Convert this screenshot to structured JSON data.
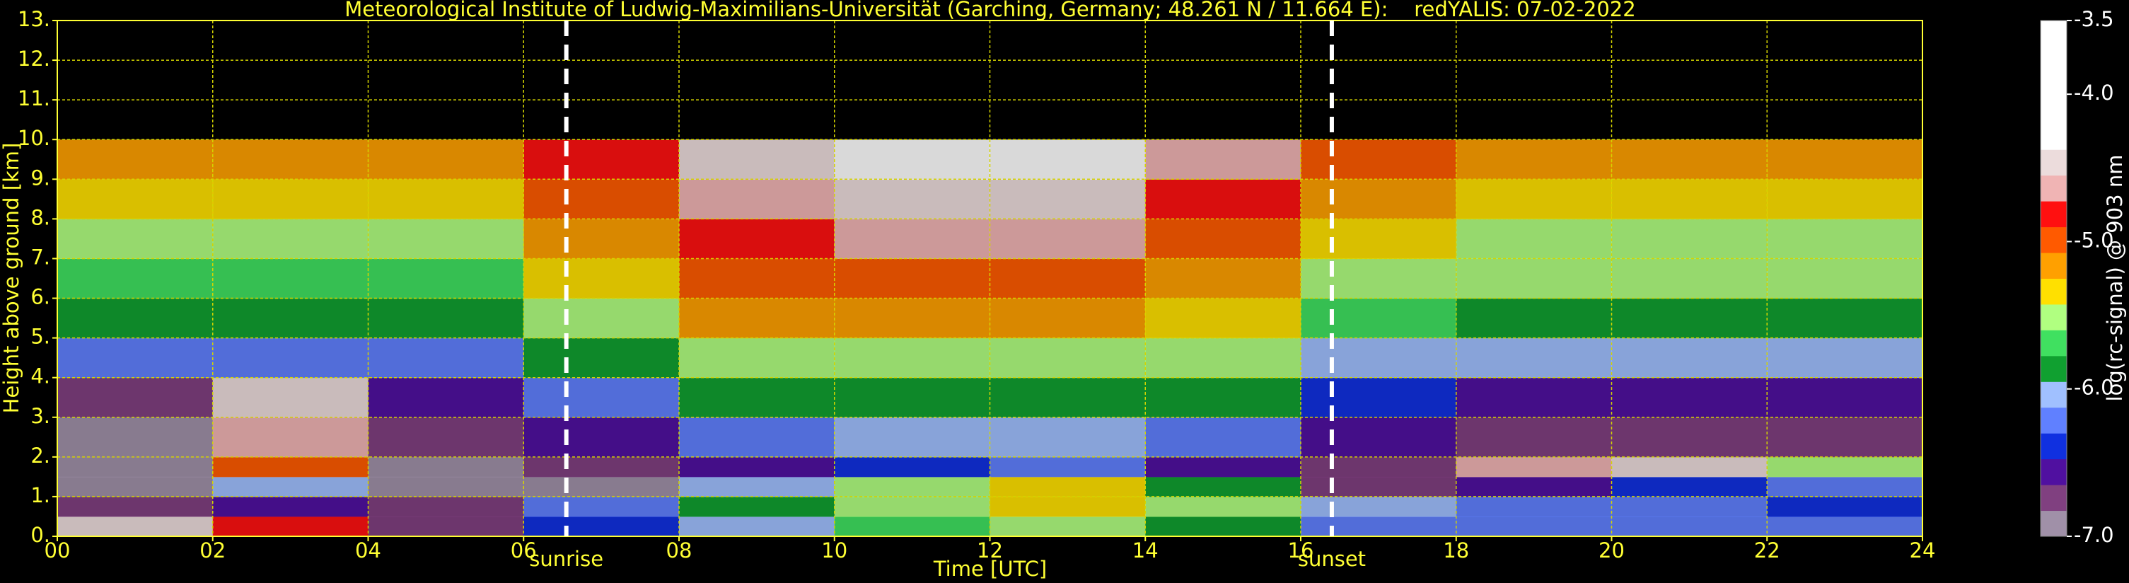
{
  "chart_data": {
    "type": "heatmap",
    "title": "Meteorological Institute of Ludwig-Maximilians-Universität (Garching, Germany; 48.261 N / 11.664 E):    redYALIS: 07-02-2022",
    "x_label": "Time [UTC]",
    "y_label": "Height above ground [km]",
    "colorbar_label": "log(rc-signal) @ 903 nm",
    "xlim": [
      0,
      24
    ],
    "ylim": [
      0,
      13
    ],
    "xticks": [
      {
        "value": 0,
        "label": "00"
      },
      {
        "value": 2,
        "label": "02"
      },
      {
        "value": 4,
        "label": "04"
      },
      {
        "value": 6,
        "label": "06"
      },
      {
        "value": 8,
        "label": "08"
      },
      10,
      12,
      14,
      16,
      18,
      20,
      22,
      24
    ],
    "yticks": [
      {
        "value": 0,
        "label": "0."
      },
      {
        "value": 1,
        "label": "1."
      },
      {
        "value": 2,
        "label": "2."
      },
      {
        "value": 3,
        "label": "3."
      },
      {
        "value": 4,
        "label": "4."
      },
      {
        "value": 5,
        "label": "5."
      },
      {
        "value": 6,
        "label": "6."
      },
      {
        "value": 7,
        "label": "7."
      },
      {
        "value": 8,
        "label": "8."
      },
      {
        "value": 9,
        "label": "9."
      },
      {
        "value": 10,
        "label": "10."
      },
      {
        "value": 11,
        "label": "11."
      },
      {
        "value": 12,
        "label": "12."
      },
      {
        "value": 13,
        "label": "13."
      }
    ],
    "grid": true,
    "grid_color": "#d4d400",
    "x_edges": [
      0,
      2,
      4,
      6,
      8,
      10,
      12,
      14,
      16,
      18,
      20,
      22,
      24
    ],
    "y_edges": [
      0,
      0.5,
      1,
      1.5,
      2,
      3,
      4,
      5,
      6,
      7,
      8,
      9,
      10
    ],
    "z": [
      [
        -4.5,
        -4.8,
        -6.7,
        -6.4,
        -6.1,
        -5.7,
        -5.6,
        -5.9,
        -6.3,
        -6.2,
        -6.3,
        -6.3
      ],
      [
        -6.8,
        -6.6,
        -6.7,
        -6.2,
        -5.8,
        -5.5,
        -5.3,
        -5.6,
        -6.0,
        -6.3,
        -6.3,
        -6.4
      ],
      [
        -7.0,
        -6.0,
        -6.9,
        -6.9,
        -6.0,
        -5.6,
        -5.4,
        -5.8,
        -6.8,
        -6.5,
        -6.4,
        -6.2
      ],
      [
        -7.0,
        -5.0,
        -6.9,
        -6.8,
        -6.5,
        -6.4,
        -6.3,
        -6.5,
        -6.8,
        -4.6,
        -4.5,
        -5.6
      ],
      [
        -6.9,
        -4.6,
        -6.7,
        -6.5,
        -6.3,
        -6.1,
        -6.1,
        -6.3,
        -6.6,
        -6.7,
        -6.7,
        -6.7
      ],
      [
        -6.7,
        -4.4,
        -6.5,
        -6.2,
        -5.9,
        -5.8,
        -5.8,
        -5.9,
        -6.4,
        -6.5,
        -6.5,
        -6.5
      ],
      [
        -6.3,
        -6.2,
        -6.2,
        -5.9,
        -5.6,
        -5.5,
        -5.5,
        -5.6,
        -6.0,
        -6.1,
        -6.1,
        -6.1
      ],
      [
        -5.9,
        -5.9,
        -5.9,
        -5.6,
        -5.2,
        -5.1,
        -5.1,
        -5.3,
        -5.7,
        -5.8,
        -5.8,
        -5.8
      ],
      [
        -5.7,
        -5.7,
        -5.7,
        -5.3,
        -5.0,
        -4.9,
        -4.9,
        -5.1,
        -5.5,
        -5.6,
        -5.6,
        -5.6
      ],
      [
        -5.5,
        -5.5,
        -5.5,
        -5.2,
        -4.8,
        -4.7,
        -4.7,
        -4.9,
        -5.4,
        -5.5,
        -5.5,
        -5.5
      ],
      [
        -5.3,
        -5.3,
        -5.3,
        -5.0,
        -4.6,
        -4.5,
        -4.5,
        -4.8,
        -5.2,
        -5.3,
        -5.3,
        -5.3
      ],
      [
        -5.1,
        -5.1,
        -5.1,
        -4.8,
        -4.4,
        -4.3,
        -4.3,
        -4.6,
        -5.0,
        -5.1,
        -5.1,
        -5.1
      ]
    ],
    "zlim": [
      -7,
      -3.5
    ],
    "zticks": [
      -3.5,
      {
        "value": -4,
        "label": "-4.0"
      },
      {
        "value": -5,
        "label": "-5.0"
      },
      {
        "value": -6,
        "label": "-6.0"
      },
      {
        "value": -7,
        "label": "-7.0"
      }
    ],
    "colormap": [
      "#a090a8",
      "#804080",
      "#5010a0",
      "#1030e0",
      "#6080ff",
      "#a0c0ff",
      "#10a030",
      "#40e060",
      "#b0ff80",
      "#ffe000",
      "#ffa000",
      "#ff5a00",
      "#ff1010",
      "#f0b4b4",
      "#ecdcdc",
      "#ffffff",
      "#ffffff",
      "#ffffff",
      "#ffffff",
      "#ffffff"
    ],
    "annotations": [
      {
        "x": 6.55,
        "label": "sunrise"
      },
      {
        "x": 16.4,
        "label": "sunset"
      }
    ]
  }
}
